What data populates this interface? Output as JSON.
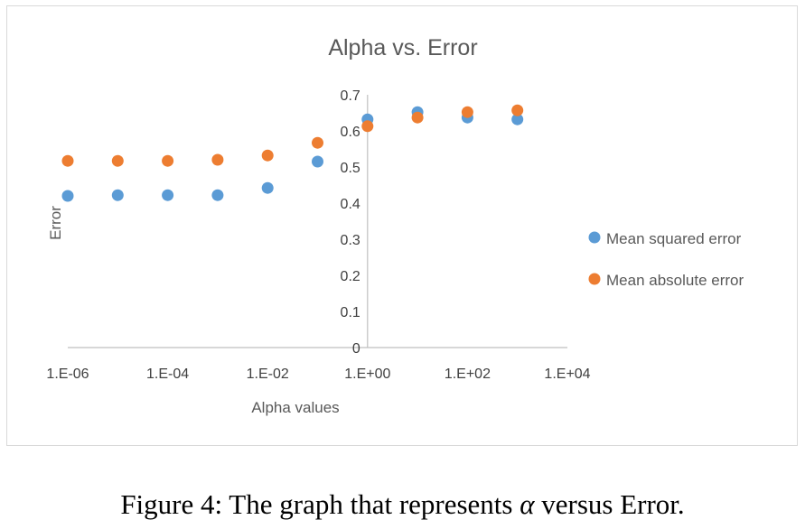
{
  "caption": {
    "prefix": "Figure 4: The graph that represents ",
    "symbol": "α",
    "suffix": " versus Error."
  },
  "colors": {
    "mse": "#5b9bd5",
    "mae": "#ed7d31",
    "axis": "#bfbfbf",
    "text": "#595959"
  },
  "chart_data": {
    "type": "scatter",
    "title": "Alpha vs. Error",
    "xlabel": "Alpha values",
    "ylabel": "Error",
    "xscale": "log",
    "xlim": [
      1e-06,
      10000.0
    ],
    "ylim": [
      0,
      0.7
    ],
    "x_tick_values": [
      1e-06,
      0.0001,
      0.01,
      1,
      100,
      10000
    ],
    "x_tick_labels": [
      "1.E-06",
      "1.E-04",
      "1.E-02",
      "1.E+00",
      "1.E+02",
      "1.E+04"
    ],
    "y_tick_values": [
      0,
      0.1,
      0.2,
      0.3,
      0.4,
      0.5,
      0.6,
      0.7
    ],
    "y_tick_labels": [
      "0",
      "0.1",
      "0.2",
      "0.3",
      "0.4",
      "0.5",
      "0.6",
      "0.7"
    ],
    "y_axis_crosses_at_x": 1,
    "grid": false,
    "legend_position": "right",
    "series": [
      {
        "name": "Mean squared error",
        "color_key": "mse",
        "points": [
          {
            "x": 1e-06,
            "y": 0.42
          },
          {
            "x": 1e-05,
            "y": 0.422
          },
          {
            "x": 0.0001,
            "y": 0.422
          },
          {
            "x": 0.001,
            "y": 0.422
          },
          {
            "x": 0.01,
            "y": 0.442
          },
          {
            "x": 0.1,
            "y": 0.515
          },
          {
            "x": 1,
            "y": 0.632
          },
          {
            "x": 10,
            "y": 0.652
          },
          {
            "x": 100,
            "y": 0.637
          },
          {
            "x": 1000,
            "y": 0.632
          }
        ]
      },
      {
        "name": "Mean absolute error",
        "color_key": "mae",
        "points": [
          {
            "x": 1e-06,
            "y": 0.517
          },
          {
            "x": 1e-05,
            "y": 0.517
          },
          {
            "x": 0.0001,
            "y": 0.517
          },
          {
            "x": 0.001,
            "y": 0.52
          },
          {
            "x": 0.01,
            "y": 0.532
          },
          {
            "x": 0.1,
            "y": 0.567
          },
          {
            "x": 1,
            "y": 0.613
          },
          {
            "x": 10,
            "y": 0.637
          },
          {
            "x": 100,
            "y": 0.652
          },
          {
            "x": 1000,
            "y": 0.657
          }
        ]
      }
    ]
  }
}
